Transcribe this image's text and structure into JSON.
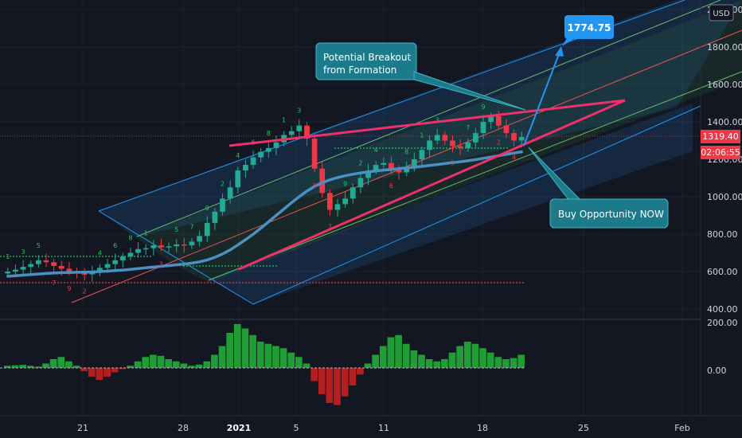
{
  "currency_badge": "USD",
  "price_label": "1319.40",
  "countdown_label": "02:06:55",
  "annotations": {
    "target": "1774.75",
    "breakout_line1": "Potential Breakout",
    "breakout_line2": "from Formation",
    "buy": "Buy Opportunity NOW"
  },
  "colors": {
    "background": "#131722",
    "bullish": "#22ab94",
    "bearish": "#f23645",
    "trendline": "#f0306a",
    "channel": "#2196f3",
    "moving_average": "#4a90c0",
    "callout": "#1c7a8a",
    "target_box": "#2196f3",
    "hist_positive": "#25b53a",
    "hist_negative": "#d42020",
    "price_tag": "#f23645"
  },
  "chart_data": [
    {
      "type": "candlestick",
      "title": "",
      "y_ticks": [
        "400.00",
        "600.00",
        "800.00",
        "1000.00",
        "1200.00",
        "1400.00",
        "1600.00",
        "1800.00",
        "2000.00"
      ],
      "ylim": [
        380,
        2000
      ],
      "x_ticks": [
        "21",
        "28",
        "2021",
        "5",
        "11",
        "18",
        "25",
        "Feb"
      ],
      "current_price": 1319.4,
      "target_price": 1774.75,
      "closes": [
        600,
        610,
        625,
        640,
        660,
        650,
        630,
        615,
        600,
        590,
        585,
        595,
        620,
        640,
        660,
        680,
        700,
        720,
        725,
        740,
        730,
        735,
        745,
        740,
        760,
        790,
        860,
        920,
        990,
        1050,
        1140,
        1170,
        1210,
        1240,
        1260,
        1290,
        1330,
        1350,
        1380,
        1310,
        1150,
        1020,
        930,
        960,
        990,
        1050,
        1100,
        1140,
        1170,
        1180,
        1150,
        1130,
        1160,
        1200,
        1250,
        1300,
        1330,
        1300,
        1270,
        1260,
        1290,
        1340,
        1400,
        1430,
        1380,
        1340,
        1300,
        1319
      ],
      "moving_average": [
        575,
        578,
        581,
        584,
        587,
        590,
        592,
        594,
        595,
        596,
        597,
        598,
        600,
        602,
        605,
        608,
        612,
        616,
        620,
        624,
        628,
        632,
        636,
        640,
        645,
        652,
        662,
        676,
        694,
        716,
        742,
        770,
        800,
        832,
        866,
        900,
        934,
        968,
        1000,
        1030,
        1055,
        1075,
        1090,
        1102,
        1112,
        1120,
        1127,
        1133,
        1138,
        1142,
        1146,
        1150,
        1154,
        1158,
        1162,
        1167,
        1172,
        1177,
        1182,
        1187,
        1192,
        1198,
        1205,
        1212,
        1219,
        1226,
        1233,
        1240
      ],
      "support_level": 545,
      "resistance_level": 1250
    },
    {
      "type": "bar",
      "title": "",
      "y_ticks": [
        "0.00",
        "200.00"
      ],
      "ylim": [
        -200,
        200
      ],
      "values": [
        10,
        12,
        14,
        10,
        6,
        20,
        40,
        50,
        30,
        10,
        -15,
        -40,
        -55,
        -40,
        -20,
        -5,
        10,
        30,
        50,
        60,
        55,
        40,
        30,
        20,
        10,
        15,
        30,
        60,
        100,
        160,
        200,
        180,
        150,
        120,
        110,
        100,
        90,
        70,
        50,
        20,
        -60,
        -120,
        -160,
        -170,
        -130,
        -80,
        -30,
        20,
        60,
        100,
        140,
        150,
        110,
        80,
        60,
        40,
        30,
        40,
        70,
        100,
        120,
        110,
        90,
        70,
        50,
        40,
        45,
        60
      ]
    }
  ]
}
